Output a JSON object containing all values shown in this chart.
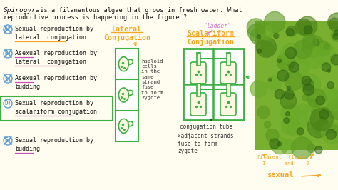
{
  "bg_color": "#fffdf0",
  "title_spirogyra": "Spirogyra",
  "title_rest1": " is a filamentous algae that grows in fresh water. What",
  "title_line2": "reproductive process is happening in the figure ?",
  "options": [
    {
      "letter": "A",
      "line1": "Sexual reproduction by",
      "line2": "lateral  conjugation",
      "ul2_color": "#f5a623",
      "ul2_word": "lateral  conjugation",
      "cross": true,
      "box": false
    },
    {
      "letter": "B",
      "line1": "Asexual reproduction by",
      "line2": "lateral  conjugation",
      "ul1_word": "Asexual",
      "ul1_color": "#c94fbf",
      "ul2_color": "#c94fbf",
      "ul2_word": "lateral  conjugation",
      "cross": true,
      "box": false
    },
    {
      "letter": "C",
      "line1": "Asexual reproduction by",
      "line2": "budding",
      "ul1_word": "Asexual",
      "ul1_color": "#c94fbf",
      "cross": true,
      "box": false
    },
    {
      "letter": "D",
      "line1": "Sexual reproduction by",
      "line2": "scalariform conjugation",
      "ul2_color": "#c94fbf",
      "ul2_word": "scalariform conjugation",
      "cross": false,
      "box": true,
      "box_color": "#3cb043"
    },
    {
      "letter": "E",
      "line1": "Sexual reproduction by",
      "line2": "budding",
      "ul1_word": "Sexual",
      "ul1_color": "#c94fbf",
      "ul2_color": "#c94fbf",
      "ul2_word": "budding",
      "cross": true,
      "box": false
    }
  ],
  "lateral_label": "Lateral\nConjugation",
  "lateral_color": "#f5a623",
  "scalariform_label": "Scalariform\nConjugation",
  "scalariform_color": "#f5a623",
  "ladder_text": "\"ladder\"",
  "ladder_color": "#d070d0",
  "diagram_green": "#3cb043",
  "cell_fill": "#fff8e0",
  "annotation_orange": "#f5a623",
  "annotation_dark": "#333333",
  "photo_green_bg": "#7ab030",
  "photo_green_dark": "#4a8018",
  "photo_green_mid": "#5a9820"
}
